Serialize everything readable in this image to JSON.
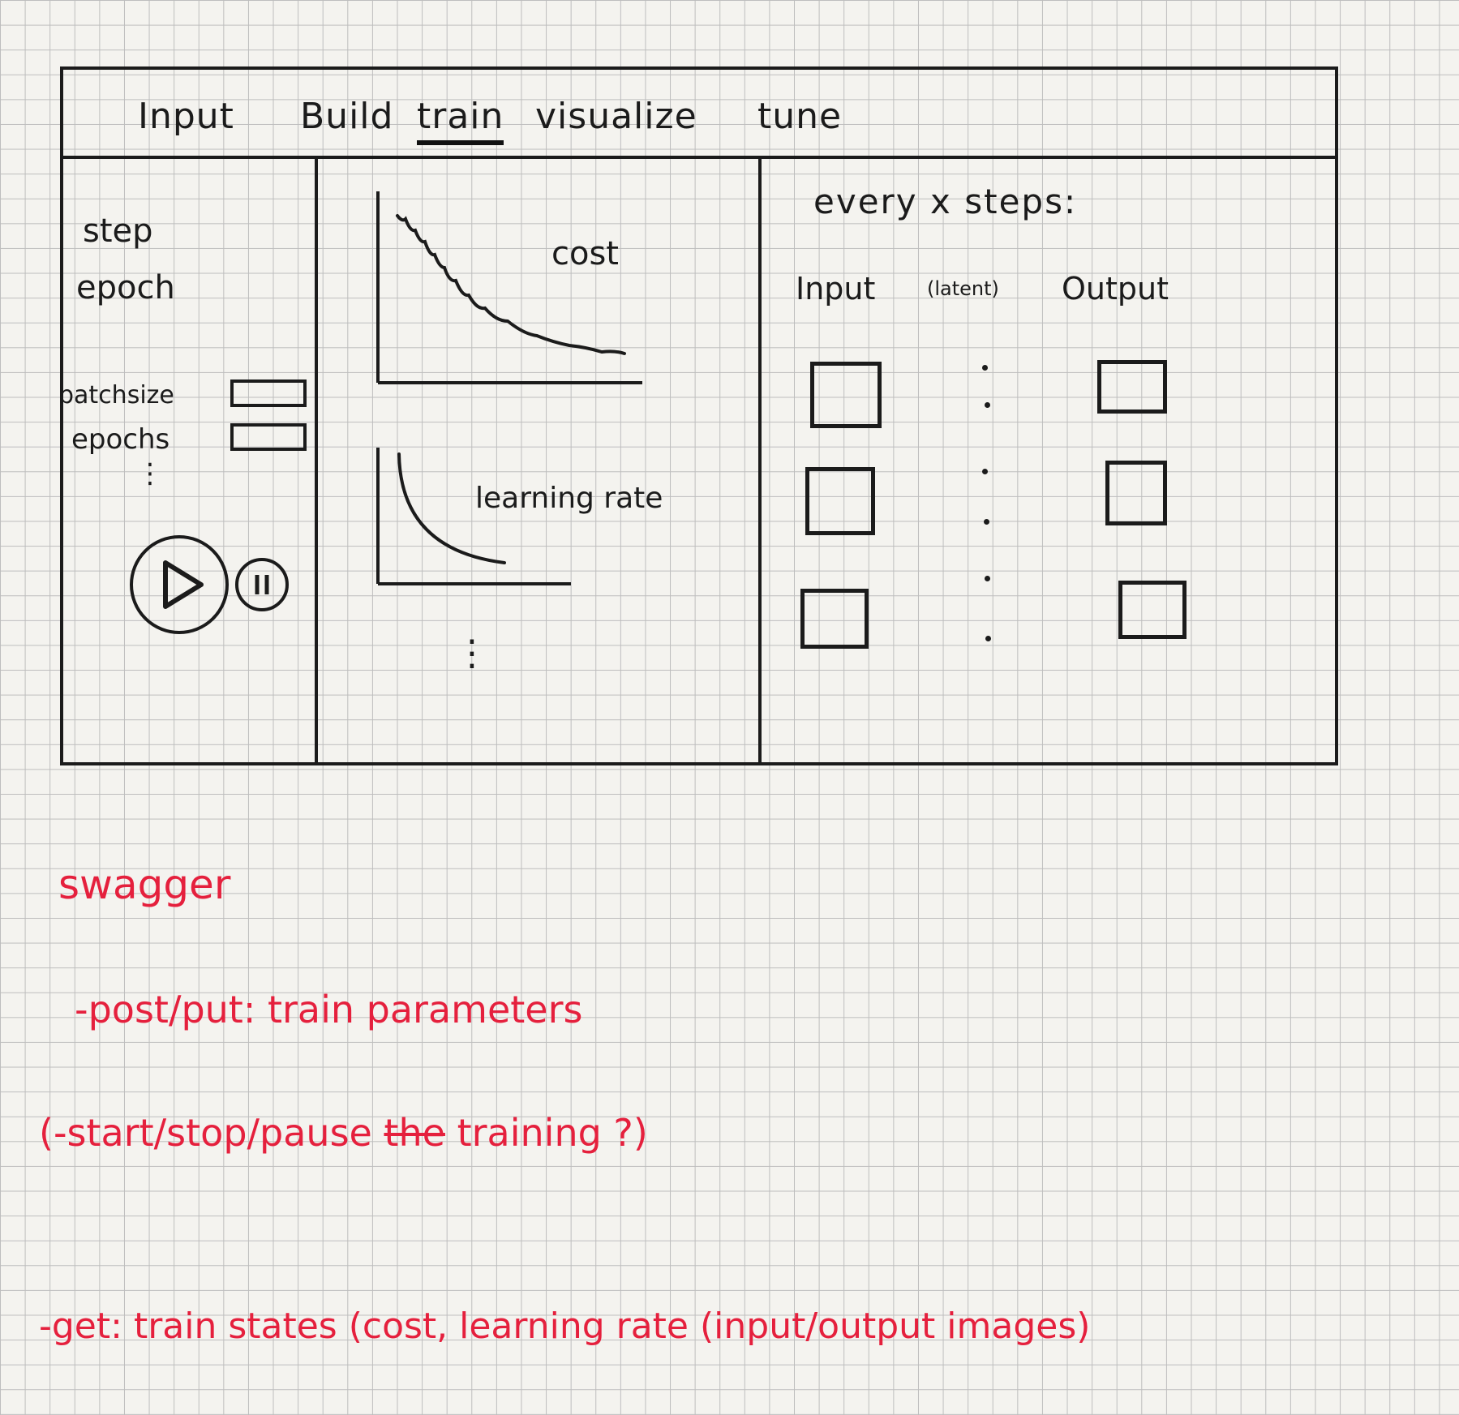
{
  "tabs": [
    {
      "label": "Input"
    },
    {
      "label": "Build"
    },
    {
      "label": "train",
      "active": true
    },
    {
      "label": "visualize"
    },
    {
      "label": "tune"
    }
  ],
  "left_panel": {
    "step_label": "step",
    "epoch_label": "epoch",
    "batchsize_label": "batchsize",
    "epochs_label": "epochs",
    "more": "⋮",
    "play_icon": "play-icon",
    "pause_icon": "pause-icon"
  },
  "charts": {
    "cost_label": "cost",
    "learning_rate_label": "learning rate",
    "more": "⋮"
  },
  "right_panel": {
    "header": "every x steps:",
    "col_input": "Input",
    "col_latent": "(latent)",
    "col_output": "Output"
  },
  "notes": {
    "title": "swagger",
    "line1": "-post/put: train parameters",
    "line2_a": "(-start/stop/pause",
    "line2_strike": "the",
    "line2_b": "training ?)",
    "line3": "-get: train states (cost, learning rate (input/output images)"
  },
  "colors": {
    "ink": "#1b1b1b",
    "note": "#e5203d",
    "paper": "#f4f3ef"
  }
}
